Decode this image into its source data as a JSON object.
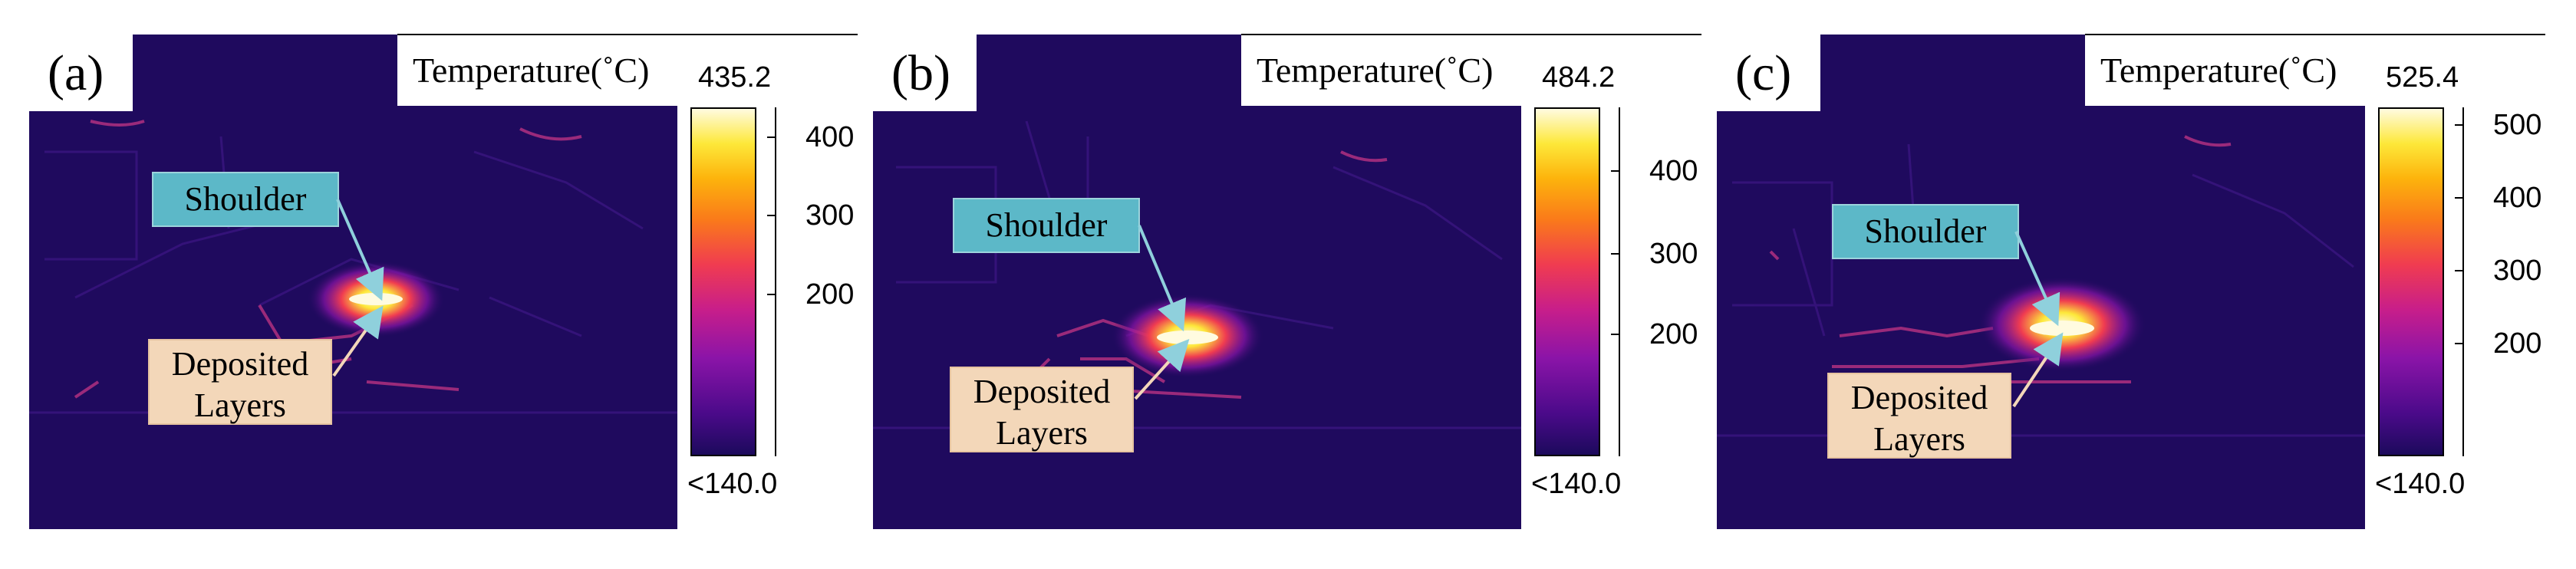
{
  "colors": {
    "background": "#1f0a5e",
    "shoulder_box": "#5cb8c8",
    "deposited_box": "#f3d7b9",
    "hot_spot": "#fffbe0",
    "arrow": "#8fd0dc"
  },
  "panels": [
    {
      "letter": "(a)",
      "title": "Temperature(˚C)",
      "max_label": "435.2",
      "min_label": "<140.0",
      "ticks": [
        "400",
        "300",
        "200"
      ],
      "shoulder_label": "Shoulder",
      "deposited_label_1": "Deposited",
      "deposited_label_2": "Layers"
    },
    {
      "letter": "(b)",
      "title": "Temperature(˚C)",
      "max_label": "484.2",
      "min_label": "<140.0",
      "ticks": [
        "400",
        "300",
        "200"
      ],
      "shoulder_label": "Shoulder",
      "deposited_label_1": "Deposited",
      "deposited_label_2": "Layers"
    },
    {
      "letter": "(c)",
      "title": "Temperature(˚C)",
      "max_label": "525.4",
      "min_label": "<140.0",
      "ticks": [
        "500",
        "400",
        "300",
        "200"
      ],
      "shoulder_label": "Shoulder",
      "deposited_label_1": "Deposited",
      "deposited_label_2": "Layers"
    }
  ]
}
